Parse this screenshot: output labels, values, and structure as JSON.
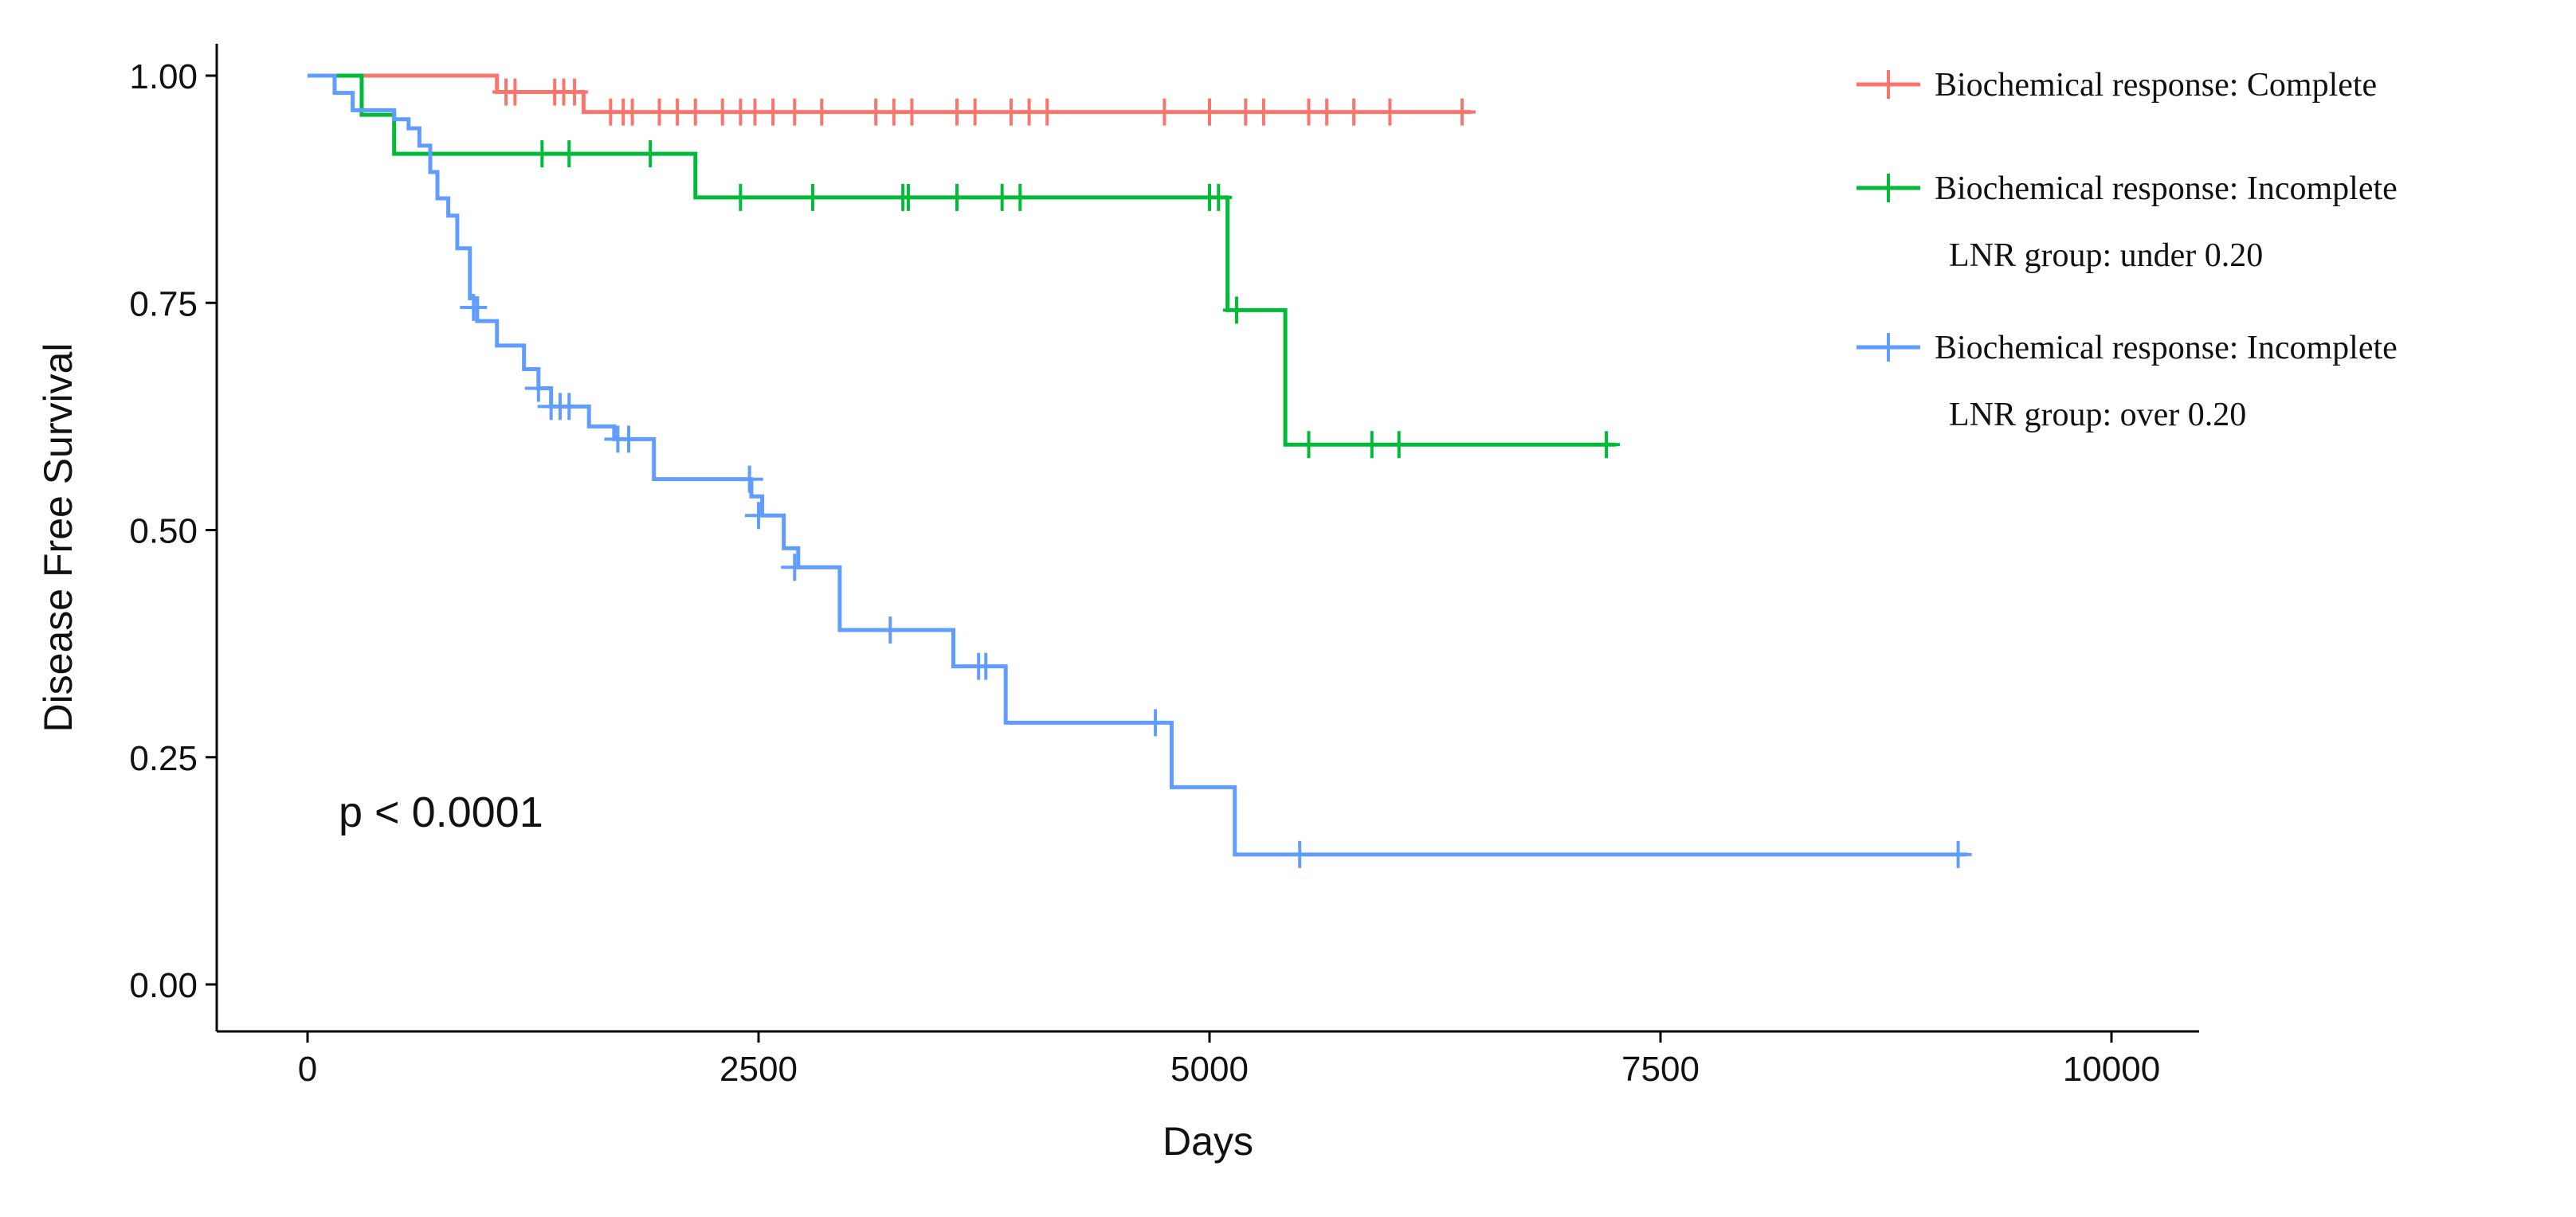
{
  "chart_data": {
    "type": "line",
    "subtype": "kaplan-meier step curves",
    "title": "",
    "xlabel": "Days",
    "ylabel": "Disease Free Survival",
    "xlim": [
      -500,
      10500
    ],
    "ylim": [
      -0.05,
      1.04
    ],
    "xticks": [
      0,
      2500,
      5000,
      7500,
      10000
    ],
    "xtick_labels": [
      "0",
      "2500",
      "5000",
      "7500",
      "10000"
    ],
    "yticks": [
      0,
      0.25,
      0.5,
      0.75,
      1.0
    ],
    "ytick_labels": [
      "0.00",
      "0.25",
      "0.50",
      "0.75",
      "1.00"
    ],
    "grid": false,
    "annotation": "p < 0.0001",
    "legend_position": "right",
    "series": [
      {
        "name": "Biochemical response: Complete",
        "legend_lines": [
          "Biochemical response: Complete"
        ],
        "color": "#F8766D",
        "steps": [
          [
            0,
            1.0
          ],
          [
            1050,
            0.982
          ],
          [
            1530,
            0.96
          ],
          [
            6450,
            0.96
          ]
        ],
        "censors": [
          [
            1100,
            0.982
          ],
          [
            1150,
            0.982
          ],
          [
            1370,
            0.982
          ],
          [
            1420,
            0.982
          ],
          [
            1480,
            0.982
          ],
          [
            1680,
            0.96
          ],
          [
            1750,
            0.96
          ],
          [
            1800,
            0.96
          ],
          [
            1950,
            0.96
          ],
          [
            2050,
            0.96
          ],
          [
            2150,
            0.96
          ],
          [
            2300,
            0.96
          ],
          [
            2400,
            0.96
          ],
          [
            2480,
            0.96
          ],
          [
            2580,
            0.96
          ],
          [
            2700,
            0.96
          ],
          [
            2850,
            0.96
          ],
          [
            3150,
            0.96
          ],
          [
            3250,
            0.96
          ],
          [
            3350,
            0.96
          ],
          [
            3600,
            0.96
          ],
          [
            3700,
            0.96
          ],
          [
            3900,
            0.96
          ],
          [
            4000,
            0.96
          ],
          [
            4100,
            0.96
          ],
          [
            4750,
            0.96
          ],
          [
            5000,
            0.96
          ],
          [
            5200,
            0.96
          ],
          [
            5300,
            0.96
          ],
          [
            5550,
            0.96
          ],
          [
            5650,
            0.96
          ],
          [
            5800,
            0.96
          ],
          [
            6000,
            0.96
          ],
          [
            6400,
            0.96
          ]
        ]
      },
      {
        "name": "Biochemical response: Incomplete LNR group: under 0.20",
        "legend_lines": [
          "Biochemical response: Incomplete",
          "LNR group: under 0.20"
        ],
        "color": "#00BA38",
        "steps": [
          [
            0,
            1.0
          ],
          [
            300,
            0.957
          ],
          [
            480,
            0.914
          ],
          [
            2150,
            0.866
          ],
          [
            5100,
            0.742
          ],
          [
            5420,
            0.594
          ],
          [
            7250,
            0.594
          ]
        ],
        "censors": [
          [
            1300,
            0.914
          ],
          [
            1450,
            0.914
          ],
          [
            1900,
            0.914
          ],
          [
            2400,
            0.866
          ],
          [
            2800,
            0.866
          ],
          [
            3300,
            0.866
          ],
          [
            3330,
            0.866
          ],
          [
            3600,
            0.866
          ],
          [
            3850,
            0.866
          ],
          [
            3950,
            0.866
          ],
          [
            5000,
            0.866
          ],
          [
            5050,
            0.866
          ],
          [
            5150,
            0.742
          ],
          [
            5550,
            0.594
          ],
          [
            5900,
            0.594
          ],
          [
            6050,
            0.594
          ],
          [
            7200,
            0.594
          ]
        ]
      },
      {
        "name": "Biochemical response: Incomplete LNR group: over 0.20",
        "legend_lines": [
          "Biochemical response: Incomplete",
          "LNR group: over 0.20"
        ],
        "color": "#619CFF",
        "steps": [
          [
            0,
            1.0
          ],
          [
            150,
            0.981
          ],
          [
            250,
            0.962
          ],
          [
            480,
            0.952
          ],
          [
            560,
            0.942
          ],
          [
            620,
            0.923
          ],
          [
            680,
            0.894
          ],
          [
            720,
            0.865
          ],
          [
            780,
            0.846
          ],
          [
            830,
            0.81
          ],
          [
            900,
            0.755
          ],
          [
            940,
            0.73
          ],
          [
            1050,
            0.703
          ],
          [
            1200,
            0.677
          ],
          [
            1280,
            0.656
          ],
          [
            1350,
            0.636
          ],
          [
            1560,
            0.614
          ],
          [
            1700,
            0.6
          ],
          [
            1920,
            0.556
          ],
          [
            2460,
            0.537
          ],
          [
            2520,
            0.516
          ],
          [
            2640,
            0.48
          ],
          [
            2720,
            0.459
          ],
          [
            2950,
            0.39
          ],
          [
            3580,
            0.35
          ],
          [
            3870,
            0.288
          ],
          [
            4790,
            0.217
          ],
          [
            5140,
            0.143
          ],
          [
            9200,
            0.143
          ]
        ],
        "censors": [
          [
            920,
            0.745
          ],
          [
            1280,
            0.656
          ],
          [
            1350,
            0.636
          ],
          [
            1400,
            0.636
          ],
          [
            1450,
            0.636
          ],
          [
            1720,
            0.6
          ],
          [
            1780,
            0.6
          ],
          [
            2450,
            0.556
          ],
          [
            2500,
            0.516
          ],
          [
            2700,
            0.459
          ],
          [
            3230,
            0.39
          ],
          [
            3720,
            0.35
          ],
          [
            3760,
            0.35
          ],
          [
            4700,
            0.288
          ],
          [
            5500,
            0.143
          ],
          [
            9150,
            0.143
          ]
        ]
      }
    ]
  }
}
